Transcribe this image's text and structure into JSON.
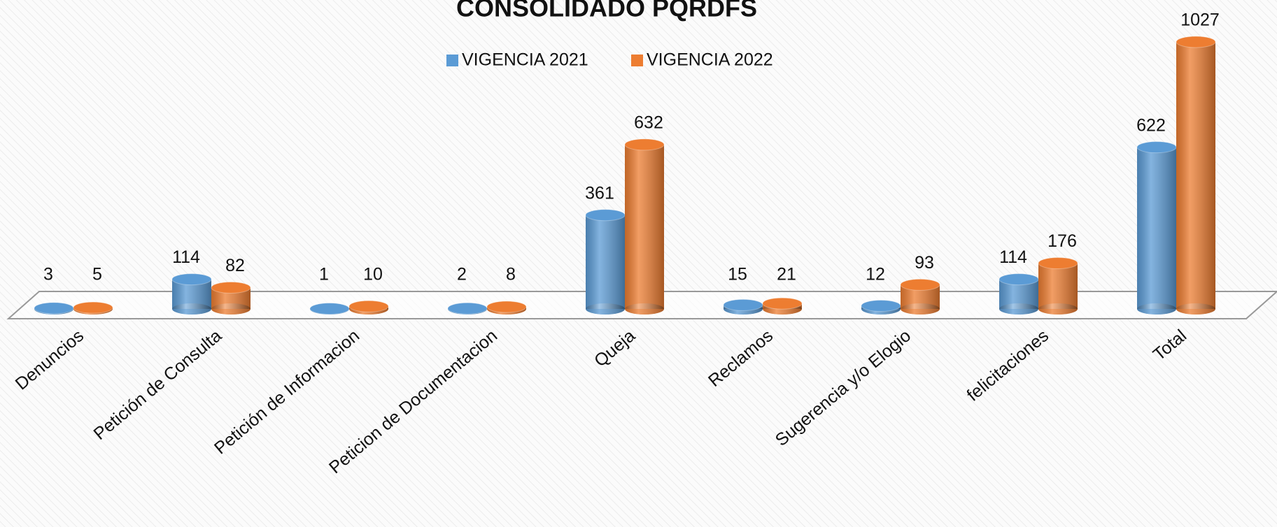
{
  "chart_data": {
    "type": "bar3d",
    "title": "CONSOLIDADO PQRDFS",
    "categories": [
      "Denuncios",
      "Petición de Consulta",
      "Petición de Informacion",
      "Peticion de Documentacion",
      "Queja",
      "Reclamos",
      "Sugerencia y/o Elogio",
      "felicitaciones",
      "Total"
    ],
    "series": [
      {
        "name": "VIGENCIA 2021",
        "color": "#5b9bd5",
        "values": [
          3,
          114,
          1,
          2,
          361,
          15,
          12,
          114,
          622
        ]
      },
      {
        "name": "VIGENCIA 2022",
        "color": "#ed7d31",
        "values": [
          5,
          82,
          10,
          8,
          632,
          21,
          93,
          176,
          1027
        ]
      }
    ],
    "legend": "top"
  }
}
